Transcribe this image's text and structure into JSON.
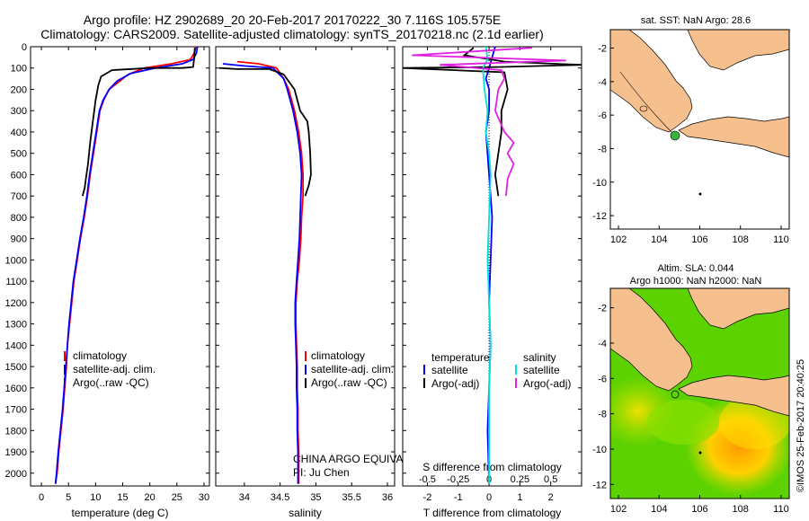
{
  "header": {
    "title_line1": "Argo profile: HZ 2902689_20 20-Feb-2017 20170222_30 7.116S 105.575E",
    "title_line2": "Climatology: CARS2009. Satellite-adjusted climatology: synTS_20170218.nc (2.1d earlier)"
  },
  "colors": {
    "climatology": "#ff0000",
    "satellite": "#0000ff",
    "argo": "#000000",
    "sat_s": "#00e0e0",
    "argo_s": "#e020e0",
    "land": "#f5c08e"
  },
  "chart_data": [
    {
      "type": "line",
      "name": "temperature",
      "xlabel": "temperature (deg C)",
      "xlim": [
        -2,
        31
      ],
      "ylim": [
        0,
        2060
      ],
      "xticks": [
        0,
        5,
        10,
        15,
        20,
        25,
        30
      ],
      "yticks": [
        0,
        100,
        200,
        300,
        400,
        500,
        600,
        700,
        800,
        900,
        1000,
        1100,
        1200,
        1300,
        1400,
        1500,
        1600,
        1700,
        1800,
        1900,
        2000
      ],
      "legend": [
        "climatology",
        "satellite-adj. clim.",
        "Argo(..raw -QC)"
      ],
      "series": [
        {
          "name": "climatology",
          "color": "#ff0000",
          "points": [
            [
              28.5,
              0
            ],
            [
              28.2,
              30
            ],
            [
              27.5,
              60
            ],
            [
              24,
              80
            ],
            [
              19,
              100
            ],
            [
              16,
              130
            ],
            [
              14,
              170
            ],
            [
              12.5,
              200
            ],
            [
              11.5,
              250
            ],
            [
              10.8,
              300
            ],
            [
              10.2,
              400
            ],
            [
              9.6,
              500
            ],
            [
              9,
              600
            ],
            [
              8.5,
              700
            ],
            [
              7.9,
              800
            ],
            [
              7.2,
              900
            ],
            [
              6.6,
              1000
            ],
            [
              6,
              1100
            ],
            [
              5.6,
              1200
            ],
            [
              5.2,
              1300
            ],
            [
              4.8,
              1400
            ],
            [
              4.6,
              1500
            ],
            [
              4.3,
              1600
            ],
            [
              4,
              1700
            ],
            [
              3.6,
              1800
            ],
            [
              3.2,
              1900
            ],
            [
              2.9,
              2000
            ],
            [
              2.6,
              2050
            ]
          ]
        },
        {
          "name": "satellite",
          "color": "#0000ff",
          "points": [
            [
              28.8,
              0
            ],
            [
              28.6,
              30
            ],
            [
              28,
              60
            ],
            [
              26,
              80
            ],
            [
              21,
              100
            ],
            [
              16.5,
              125
            ],
            [
              14,
              160
            ],
            [
              12.5,
              200
            ],
            [
              11.4,
              250
            ],
            [
              10.7,
              300
            ],
            [
              10.1,
              400
            ],
            [
              9.5,
              500
            ],
            [
              8.9,
              600
            ],
            [
              8.4,
              700
            ],
            [
              7.8,
              800
            ],
            [
              7.1,
              900
            ],
            [
              6.5,
              1000
            ],
            [
              5.9,
              1100
            ],
            [
              5.5,
              1200
            ],
            [
              5.1,
              1300
            ],
            [
              4.8,
              1400
            ],
            [
              4.5,
              1500
            ],
            [
              4.2,
              1600
            ],
            [
              3.9,
              1700
            ],
            [
              3.5,
              1800
            ],
            [
              3.1,
              1900
            ],
            [
              2.8,
              2000
            ],
            [
              2.6,
              2050
            ]
          ]
        },
        {
          "name": "argo",
          "color": "#000000",
          "points": [
            [
              28.3,
              5
            ],
            [
              28.2,
              50
            ],
            [
              28,
              95
            ],
            [
              26,
              100
            ],
            [
              20,
              100
            ],
            [
              13,
              110
            ],
            [
              11,
              140
            ],
            [
              10.5,
              180
            ],
            [
              10,
              250
            ],
            [
              9.5,
              350
            ],
            [
              9,
              450
            ],
            [
              8.6,
              550
            ],
            [
              8.2,
              620
            ],
            [
              8,
              660
            ],
            [
              7.6,
              700
            ]
          ]
        }
      ]
    },
    {
      "type": "line",
      "name": "salinity",
      "xlabel": "salinity",
      "xlim": [
        33.6,
        36.1
      ],
      "ylim": [
        0,
        2060
      ],
      "xticks": [
        34,
        34.5,
        35,
        35.5,
        36
      ],
      "legend": [
        "climatology",
        "satellite-adj. clim.",
        "Argo(..raw -QC)"
      ],
      "annotation": [
        "CHINA ARGO EQUIVALENT",
        "PI: Ju Chen"
      ],
      "series": [
        {
          "name": "climatology",
          "color": "#ff0000",
          "points": [
            [
              33.9,
              70
            ],
            [
              34.2,
              80
            ],
            [
              34.45,
              100
            ],
            [
              34.55,
              150
            ],
            [
              34.62,
              200
            ],
            [
              34.7,
              300
            ],
            [
              34.76,
              400
            ],
            [
              34.8,
              500
            ],
            [
              34.82,
              600
            ],
            [
              34.82,
              700
            ],
            [
              34.8,
              800
            ],
            [
              34.79,
              900
            ],
            [
              34.77,
              1000
            ],
            [
              34.74,
              1100
            ],
            [
              34.72,
              1200
            ],
            [
              34.72,
              1300
            ],
            [
              34.73,
              1400
            ],
            [
              34.74,
              1500
            ],
            [
              34.74,
              1600
            ],
            [
              34.75,
              1700
            ],
            [
              34.75,
              1800
            ],
            [
              34.76,
              1900
            ],
            [
              34.76,
              2000
            ],
            [
              34.76,
              2050
            ]
          ]
        },
        {
          "name": "satellite",
          "color": "#0000ff",
          "points": [
            [
              33.7,
              80
            ],
            [
              34.0,
              90
            ],
            [
              34.4,
              100
            ],
            [
              34.55,
              150
            ],
            [
              34.6,
              200
            ],
            [
              34.68,
              300
            ],
            [
              34.74,
              400
            ],
            [
              34.78,
              500
            ],
            [
              34.8,
              600
            ],
            [
              34.79,
              700
            ],
            [
              34.78,
              800
            ],
            [
              34.77,
              900
            ],
            [
              34.75,
              1000
            ],
            [
              34.73,
              1100
            ],
            [
              34.71,
              1200
            ],
            [
              34.71,
              1300
            ],
            [
              34.72,
              1400
            ],
            [
              34.73,
              1500
            ],
            [
              34.73,
              1600
            ],
            [
              34.74,
              1700
            ],
            [
              34.74,
              1800
            ],
            [
              34.75,
              1900
            ],
            [
              34.75,
              2000
            ],
            [
              34.75,
              2050
            ]
          ]
        },
        {
          "name": "argo",
          "color": "#000000",
          "points": [
            [
              33.65,
              100
            ],
            [
              33.9,
              105
            ],
            [
              34.35,
              105
            ],
            [
              34.55,
              130
            ],
            [
              34.7,
              200
            ],
            [
              34.78,
              300
            ],
            [
              34.88,
              350
            ],
            [
              34.9,
              400
            ],
            [
              34.92,
              500
            ],
            [
              34.93,
              600
            ],
            [
              34.9,
              650
            ],
            [
              34.85,
              700
            ]
          ]
        }
      ]
    },
    {
      "type": "line",
      "name": "difference",
      "xlabel": "T difference from climatology",
      "xlabel_top": "S difference from climatology",
      "xlim": [
        -2.8,
        3
      ],
      "ylim": [
        0,
        2060
      ],
      "xticks_T": [
        -2,
        -1,
        0,
        1,
        2
      ],
      "xticks_S": [
        -0.5,
        -0.25,
        0,
        0.25,
        0.5
      ],
      "legend_T": [
        "temperature",
        "satellite",
        "Argo(-adj)"
      ],
      "legend_S": [
        "salinity",
        "satellite",
        "Argo(-adj)"
      ],
      "series": [
        {
          "name": "T satellite",
          "color": "#0000ff",
          "points": [
            [
              0.2,
              0
            ],
            [
              0.1,
              50
            ],
            [
              0.0,
              100
            ],
            [
              -0.1,
              150
            ],
            [
              0.0,
              200
            ],
            [
              0.0,
              300
            ],
            [
              -0.1,
              400
            ],
            [
              0.0,
              600
            ],
            [
              0.1,
              800
            ],
            [
              0.05,
              1000
            ],
            [
              0.0,
              1200
            ],
            [
              0.05,
              1400
            ],
            [
              0.0,
              1600
            ],
            [
              -0.05,
              1800
            ],
            [
              0.0,
              2050
            ]
          ]
        },
        {
          "name": "T argo",
          "color": "#000000",
          "points": [
            [
              -0.5,
              5
            ],
            [
              -0.8,
              40
            ],
            [
              0.5,
              70
            ],
            [
              3,
              85
            ],
            [
              0.3,
              95
            ],
            [
              -2.8,
              100
            ],
            [
              0.5,
              120
            ],
            [
              0.6,
              200
            ],
            [
              0.4,
              300
            ],
            [
              0.4,
              400
            ],
            [
              0.3,
              500
            ],
            [
              0.2,
              600
            ],
            [
              0.3,
              700
            ]
          ]
        },
        {
          "name": "S satellite",
          "color": "#00e0e0",
          "points": [
            [
              -0.1,
              0
            ],
            [
              -0.05,
              60
            ],
            [
              -0.2,
              100
            ],
            [
              -0.15,
              200
            ],
            [
              -0.05,
              300
            ],
            [
              -0.1,
              400
            ],
            [
              0.0,
              500
            ],
            [
              0.05,
              600
            ],
            [
              0.0,
              800
            ],
            [
              -0.05,
              1000
            ],
            [
              0.0,
              1200
            ],
            [
              0.05,
              1400
            ],
            [
              0.0,
              1600
            ],
            [
              0.0,
              1800
            ],
            [
              0.0,
              2050
            ]
          ]
        },
        {
          "name": "S argo",
          "color": "#e020e0",
          "points": [
            [
              1.4,
              5
            ],
            [
              -2.5,
              40
            ],
            [
              2.5,
              65
            ],
            [
              -1.6,
              85
            ],
            [
              0.4,
              110
            ],
            [
              0.5,
              150
            ],
            [
              0.3,
              200
            ],
            [
              0.2,
              300
            ],
            [
              0.5,
              400
            ],
            [
              0.8,
              450
            ],
            [
              0.6,
              500
            ],
            [
              0.8,
              550
            ],
            [
              0.6,
              620
            ],
            [
              0.55,
              700
            ]
          ]
        }
      ]
    }
  ],
  "map_sst": {
    "title": "sat. SST: NaN Argo: 28.6",
    "xticks": [
      "102",
      "104",
      "106",
      "108",
      "110"
    ],
    "yticks": [
      "-2",
      "-4",
      "-6",
      "-8",
      "-10",
      "-12"
    ],
    "argo_position": {
      "lon": 105.575,
      "lat": -7.116
    }
  },
  "map_sla": {
    "title_line1": "Altim. SLA: 0.044",
    "title_line2": "Argo h1000: NaN h2000: NaN",
    "xticks": [
      "102",
      "104",
      "106",
      "108",
      "110"
    ],
    "yticks": [
      "-2",
      "-4",
      "-6",
      "-8",
      "-10",
      "-12"
    ]
  },
  "side_label": "©IMOS 25-Feb-2017 20:40:25"
}
